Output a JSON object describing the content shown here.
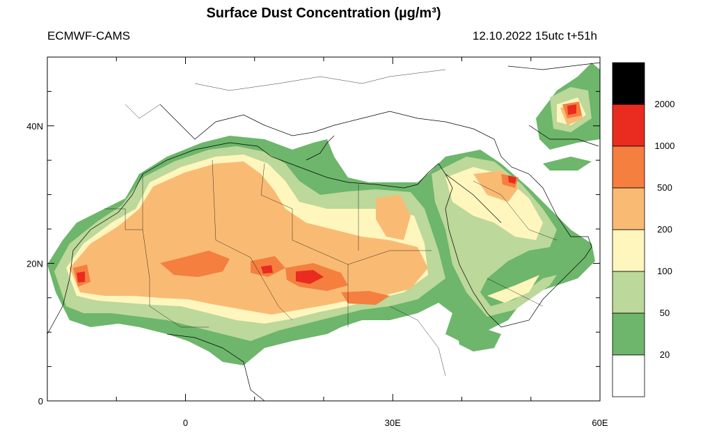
{
  "title": "Surface Dust Concentration (µg/m³)",
  "source_label": "ECMWF-CAMS",
  "run_label": "12.10.2022 15utc t+51h",
  "map": {
    "lon_range": [
      -20,
      60
    ],
    "lat_range": [
      0,
      50
    ],
    "y_ticks": [
      {
        "lat": 40,
        "label": "40N"
      },
      {
        "lat": 20,
        "label": "20N"
      },
      {
        "lat": 0,
        "label": "0"
      }
    ],
    "x_ticks": [
      {
        "lon": 0,
        "label": "0"
      },
      {
        "lon": 30,
        "label": "30E"
      },
      {
        "lon": 60,
        "label": "60E"
      }
    ]
  },
  "legend": {
    "levels": [
      "2000",
      "1000",
      "500",
      "200",
      "100",
      "50",
      "20"
    ],
    "colors": [
      "#000000",
      "#ea2b1f",
      "#f47f3f",
      "#f9bb74",
      "#fff6be",
      "#bcd89a",
      "#6db66b",
      "#ffffff"
    ]
  }
}
